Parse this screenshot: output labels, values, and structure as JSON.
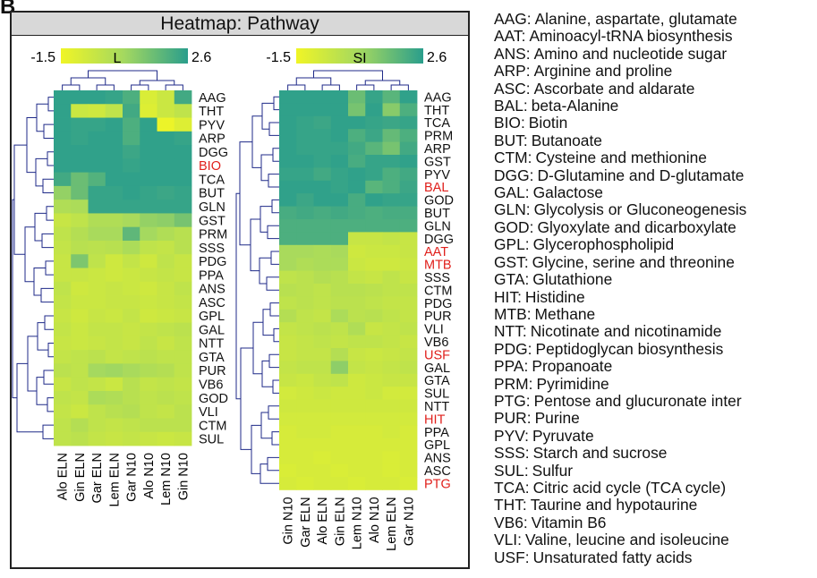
{
  "panel_label": "B",
  "title": "Heatmap: Pathway",
  "colors": {
    "low": "#f0f526",
    "mid": "#a3d860",
    "high": "#2a9e8c",
    "label_default": "#111111",
    "label_highlight": "#e0201c",
    "dendrogram": "#1f2a88"
  },
  "chart_data": [
    {
      "type": "heatmap",
      "colorbar": {
        "min": -1.5,
        "max": 2.6,
        "min_label": "-1.5",
        "max_label": "2.6",
        "label": "L"
      },
      "columns": [
        "Alo ELN",
        "Gin ELN",
        "Gar ELN",
        "Lem ELN",
        "Gar N10",
        "Alo N10",
        "Lem N10",
        "Gin N10"
      ],
      "rows": [
        "AAG",
        "THT",
        "PYV",
        "ARP",
        "DGG",
        "BIO",
        "TCA",
        "BUT",
        "GLN",
        "GST",
        "PRM",
        "SSS",
        "PDG",
        "PPA",
        "ANS",
        "ASC",
        "GPL",
        "GAL",
        "NTT",
        "GTA",
        "PUR",
        "VB6",
        "GOD",
        "VLI",
        "CTM",
        "SUL"
      ],
      "highlighted_rows": [
        "BIO"
      ],
      "values": [
        [
          2.5,
          2.5,
          2.5,
          2.4,
          2.0,
          -0.9,
          -0.5,
          2.2
        ],
        [
          2.5,
          -0.5,
          -0.6,
          -0.2,
          2.2,
          -1.0,
          -0.5,
          -0.2
        ],
        [
          2.5,
          2.4,
          2.4,
          2.5,
          2.0,
          2.5,
          -1.4,
          -1.0
        ],
        [
          2.5,
          2.4,
          2.5,
          2.5,
          2.0,
          2.5,
          2.5,
          2.4
        ],
        [
          2.5,
          2.5,
          2.5,
          2.5,
          2.3,
          2.5,
          2.5,
          2.5
        ],
        [
          2.5,
          2.5,
          2.5,
          2.5,
          2.4,
          2.5,
          2.5,
          2.5
        ],
        [
          2.2,
          1.5,
          1.9,
          2.5,
          2.5,
          2.5,
          2.5,
          2.5
        ],
        [
          0.8,
          1.5,
          2.4,
          2.4,
          2.5,
          2.4,
          2.3,
          2.4
        ],
        [
          0.2,
          0.3,
          2.4,
          2.4,
          2.4,
          2.4,
          2.4,
          2.4
        ],
        [
          -0.4,
          -0.2,
          0.2,
          0.2,
          0.4,
          0.8,
          0.9,
          1.3
        ],
        [
          -0.2,
          0.1,
          0.4,
          0.4,
          1.7,
          0.5,
          0.2,
          0.0
        ],
        [
          -0.3,
          0.0,
          -0.1,
          0.0,
          0.3,
          -0.2,
          -0.3,
          0.0
        ],
        [
          -0.4,
          1.2,
          -0.2,
          -0.6,
          -0.3,
          -0.6,
          -0.2,
          -0.4
        ],
        [
          -0.4,
          -0.4,
          -0.5,
          -0.6,
          -0.5,
          -0.4,
          -0.3,
          -0.4
        ],
        [
          -0.2,
          -0.6,
          -0.5,
          -0.4,
          -0.5,
          -0.6,
          -0.4,
          -0.2
        ],
        [
          -0.3,
          -0.5,
          -0.5,
          -0.4,
          -0.4,
          -0.5,
          -0.4,
          -0.3
        ],
        [
          -0.4,
          -0.6,
          -0.4,
          -0.5,
          -0.3,
          -0.6,
          -0.5,
          -0.4
        ],
        [
          -0.3,
          -0.5,
          -0.3,
          -0.3,
          -0.4,
          -0.3,
          -0.2,
          -0.1
        ],
        [
          -0.4,
          -0.5,
          -0.4,
          -0.3,
          -0.4,
          -0.2,
          -0.4,
          -0.2
        ],
        [
          -0.3,
          -0.2,
          -0.1,
          -0.3,
          -0.2,
          -0.1,
          -0.2,
          -0.2
        ],
        [
          -0.1,
          -0.2,
          0.5,
          0.6,
          0.4,
          0.2,
          0.1,
          -0.2
        ],
        [
          -0.4,
          -0.2,
          -0.3,
          -0.5,
          0.0,
          -0.3,
          -0.2,
          -0.3
        ],
        [
          -0.2,
          -0.3,
          0.3,
          0.2,
          0.0,
          -0.2,
          -0.1,
          -0.2
        ],
        [
          -0.3,
          -0.5,
          -0.2,
          0.0,
          0.1,
          -0.2,
          -0.3,
          -0.1
        ],
        [
          -0.2,
          0.1,
          -0.2,
          -0.3,
          -0.2,
          -0.1,
          -0.1,
          -0.1
        ],
        [
          -0.2,
          -0.1,
          -0.3,
          -0.4,
          -0.3,
          -0.4,
          -0.5,
          -0.4
        ]
      ]
    },
    {
      "type": "heatmap",
      "colorbar": {
        "min": -1.5,
        "max": 2.6,
        "min_label": "-1.5",
        "max_label": "2.6",
        "label": "SI"
      },
      "columns": [
        "Gin N10",
        "Gar ELN",
        "Alo ELN",
        "Gin ELN",
        "Lem N10",
        "Alo N10",
        "Lem ELN",
        "Gar N10"
      ],
      "rows": [
        "AAG",
        "THT",
        "TCA",
        "PRM",
        "ARP",
        "GST",
        "PYV",
        "BAL",
        "GOD",
        "BUT",
        "GLN",
        "DGG",
        "AAT",
        "MTB",
        "SSS",
        "CTM",
        "PDG",
        "PUR",
        "VLI",
        "VB6",
        "USF",
        "GAL",
        "GTA",
        "SUL",
        "NTT",
        "HIT",
        "PPA",
        "GPL",
        "ANS",
        "ASC",
        "PTG"
      ],
      "highlighted_rows": [
        "BAL",
        "AAT",
        "MTB",
        "USF",
        "HIT",
        "PTG"
      ],
      "values": [
        [
          2.5,
          2.5,
          2.5,
          2.5,
          1.5,
          2.4,
          1.8,
          2.5
        ],
        [
          2.5,
          2.5,
          2.5,
          2.5,
          1.3,
          2.5,
          1.0,
          2.0
        ],
        [
          2.5,
          2.4,
          2.3,
          2.5,
          2.5,
          2.4,
          2.3,
          2.4
        ],
        [
          2.5,
          2.4,
          2.4,
          2.5,
          2.0,
          2.3,
          1.6,
          2.0
        ],
        [
          2.5,
          2.4,
          2.4,
          2.4,
          2.2,
          1.8,
          1.3,
          2.2
        ],
        [
          2.5,
          2.5,
          2.4,
          2.5,
          2.1,
          2.4,
          2.4,
          2.5
        ],
        [
          2.4,
          2.4,
          2.2,
          2.4,
          2.5,
          2.4,
          2.0,
          2.2
        ],
        [
          2.5,
          2.5,
          2.5,
          2.4,
          2.5,
          1.8,
          2.0,
          2.3
        ],
        [
          2.5,
          2.3,
          2.5,
          2.5,
          2.1,
          2.5,
          2.4,
          2.4
        ],
        [
          2.1,
          2.2,
          2.1,
          2.2,
          2.1,
          2.0,
          2.1,
          2.1
        ],
        [
          2.0,
          2.0,
          2.0,
          2.0,
          2.0,
          2.0,
          2.0,
          2.0
        ],
        [
          2.0,
          2.0,
          2.0,
          2.0,
          -0.4,
          -0.4,
          -0.3,
          -0.4
        ],
        [
          0.4,
          0.4,
          0.3,
          0.4,
          -0.6,
          -0.5,
          -0.5,
          -0.4
        ],
        [
          0.4,
          0.2,
          0.3,
          0.3,
          -0.5,
          -0.6,
          -0.6,
          -0.5
        ],
        [
          -0.2,
          -0.1,
          0.1,
          0.0,
          -0.3,
          -0.4,
          -0.2,
          -0.4
        ],
        [
          0.0,
          -0.1,
          -0.2,
          0.0,
          0.0,
          -0.1,
          -0.2,
          -0.2
        ],
        [
          -0.2,
          -0.1,
          -0.2,
          -0.1,
          -0.1,
          -0.2,
          -0.3,
          -0.3
        ],
        [
          0.1,
          -0.2,
          -0.3,
          0.3,
          -0.1,
          0.0,
          -0.2,
          -0.3
        ],
        [
          -0.3,
          -0.2,
          -0.1,
          -0.2,
          0.2,
          -0.4,
          -0.3,
          -0.2
        ],
        [
          -0.4,
          -0.3,
          -0.2,
          -0.3,
          -0.2,
          -0.2,
          -0.3,
          -0.4
        ],
        [
          -0.4,
          -0.3,
          -0.3,
          0.1,
          -0.4,
          -0.5,
          -0.4,
          -0.3
        ],
        [
          -0.3,
          -0.2,
          -0.2,
          0.9,
          -0.3,
          -0.4,
          -0.3,
          -0.2
        ],
        [
          -0.4,
          -0.5,
          -0.3,
          -0.2,
          -0.6,
          -0.5,
          -0.4,
          -0.4
        ],
        [
          -0.7,
          -0.6,
          -0.5,
          -0.6,
          -0.6,
          -0.5,
          -0.7,
          -0.7
        ],
        [
          -0.6,
          -0.6,
          -0.6,
          -0.6,
          -0.6,
          -0.6,
          -0.6,
          -0.6
        ],
        [
          -0.7,
          -0.7,
          -0.7,
          -0.7,
          -0.7,
          -0.7,
          -0.7,
          -0.7
        ],
        [
          -0.8,
          -0.7,
          -0.7,
          -0.8,
          -0.8,
          -0.8,
          -0.7,
          -0.8
        ],
        [
          -0.8,
          -0.8,
          -0.8,
          -0.8,
          -0.8,
          -0.8,
          -0.8,
          -0.8
        ],
        [
          -0.8,
          -0.8,
          -0.9,
          -0.8,
          -0.8,
          -0.8,
          -0.9,
          -0.8
        ],
        [
          -0.9,
          -0.8,
          -0.8,
          -0.9,
          -0.8,
          -0.8,
          -0.9,
          -0.8
        ],
        [
          -0.8,
          -0.9,
          -0.8,
          -0.8,
          -0.9,
          -0.8,
          -0.8,
          -0.9
        ]
      ]
    }
  ],
  "legend": [
    {
      "code": "AAG:",
      "name": "Alanine, aspartate, glutamate"
    },
    {
      "code": "AAT:",
      "name": "Aminoacyl-tRNA biosynthesis"
    },
    {
      "code": "ANS:",
      "name": "Amino and nucleotide sugar"
    },
    {
      "code": "ARP:",
      "name": "Arginine and proline"
    },
    {
      "code": "ASC:",
      "name": "Ascorbate and aldarate"
    },
    {
      "code": "BAL:",
      "name": "beta-Alanine"
    },
    {
      "code": "BIO:",
      "name": "Biotin"
    },
    {
      "code": "BUT:",
      "name": "Butanoate"
    },
    {
      "code": "CTM:",
      "name": "Cysteine and methionine"
    },
    {
      "code": "DGG:",
      "name": "D-Glutamine and D-glutamate"
    },
    {
      "code": "GAL:",
      "name": "Galactose"
    },
    {
      "code": "GLN:",
      "name": "Glycolysis or Gluconeogenesis"
    },
    {
      "code": "GOD:",
      "name": "Glyoxylate and dicarboxylate"
    },
    {
      "code": "GPL:",
      "name": "Glycerophospholipid"
    },
    {
      "code": "GST:",
      "name": "Glycine, serine and threonine"
    },
    {
      "code": "GTA:",
      "name": "Glutathione"
    },
    {
      "code": "HIT:",
      "name": "Histidine"
    },
    {
      "code": "MTB:",
      "name": "Methane"
    },
    {
      "code": "NTT:",
      "name": "Nicotinate and nicotinamide"
    },
    {
      "code": "PDG:",
      "name": "Peptidoglycan biosynthesis"
    },
    {
      "code": "PPA:",
      "name": "Propanoate"
    },
    {
      "code": "PRM:",
      "name": "Pyrimidine"
    },
    {
      "code": "PTG:",
      "name": "Pentose and glucuronate inter"
    },
    {
      "code": "PUR:",
      "name": "Purine"
    },
    {
      "code": "PYV:",
      "name": "Pyruvate"
    },
    {
      "code": "SSS:",
      "name": "Starch and sucrose"
    },
    {
      "code": "SUL:",
      "name": "Sulfur"
    },
    {
      "code": "TCA:",
      "name": "Citric acid cycle (TCA cycle)"
    },
    {
      "code": "THT:",
      "name": "Taurine and hypotaurine"
    },
    {
      "code": "VB6:",
      "name": "Vitamin B6"
    },
    {
      "code": "VLI:",
      "name": "Valine, leucine and isoleucine"
    },
    {
      "code": "USF:",
      "name": "Unsaturated fatty acids"
    }
  ]
}
